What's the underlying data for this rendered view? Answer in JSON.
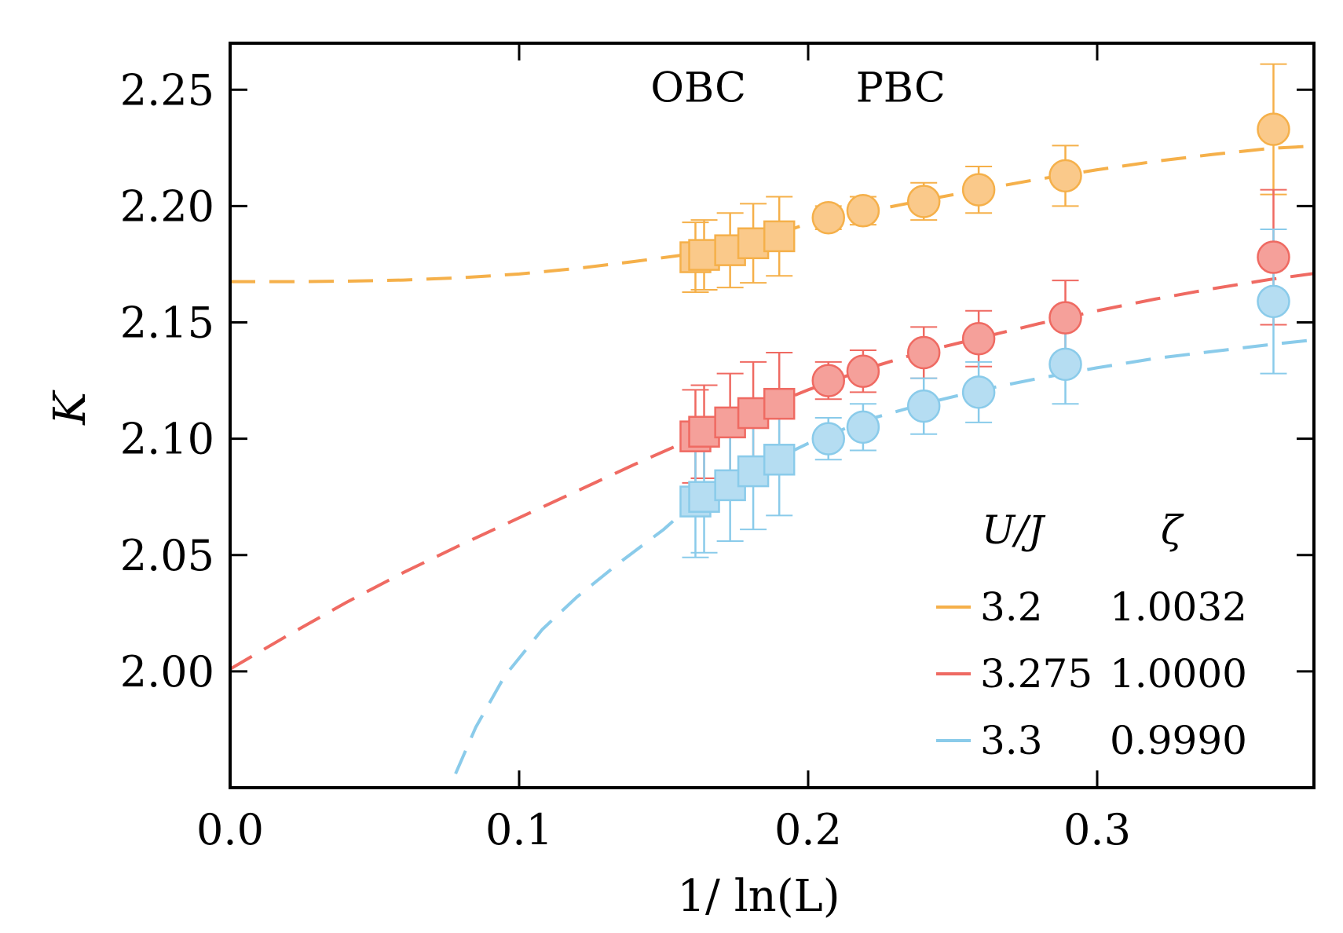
{
  "chart_data": {
    "type": "scatter",
    "title": "",
    "xlabel": "1/ ln(L)",
    "ylabel": "K",
    "xlim": [
      0.0,
      0.375
    ],
    "ylim": [
      1.95,
      2.27
    ],
    "xticks": [
      0.0,
      0.1,
      0.2,
      0.3
    ],
    "xtick_labels": [
      "0.0",
      "0.1",
      "0.2",
      "0.3"
    ],
    "yticks": [
      2.0,
      2.05,
      2.1,
      2.15,
      2.2,
      2.25
    ],
    "ytick_labels": [
      "2.00",
      "2.05",
      "2.10",
      "2.15",
      "2.20",
      "2.25"
    ],
    "grid": false,
    "annotations": [
      {
        "text": "OBC",
        "x": 0.162,
        "y": 2.251
      },
      {
        "text": "PBC",
        "x": 0.232,
        "y": 2.251
      }
    ],
    "legend": {
      "placement": "bottom-right",
      "header": {
        "col1": "U/J",
        "col2": "ζ"
      }
    },
    "series": [
      {
        "name": "3.2",
        "zeta": "1.0032",
        "color": "#F5B04A",
        "fill": "#FAC98A",
        "obc": {
          "x": [
            0.161,
            0.164,
            0.173,
            0.181,
            0.19
          ],
          "y": [
            2.178,
            2.179,
            2.181,
            2.184,
            2.187
          ],
          "err": [
            0.015,
            0.015,
            0.016,
            0.017,
            0.017
          ]
        },
        "pbc": {
          "x": [
            0.207,
            0.219,
            0.24,
            0.259,
            0.289,
            0.361
          ],
          "y": [
            2.195,
            2.198,
            2.202,
            2.207,
            2.213,
            2.233
          ],
          "err": [
            0.005,
            0.006,
            0.008,
            0.01,
            0.013,
            0.028
          ]
        },
        "fit": {
          "x": [
            0.0,
            0.02,
            0.04,
            0.06,
            0.08,
            0.1,
            0.12,
            0.14,
            0.16,
            0.18,
            0.2,
            0.22,
            0.24,
            0.26,
            0.28,
            0.3,
            0.32,
            0.34,
            0.36,
            0.375
          ],
          "y": [
            2.1675,
            2.1675,
            2.1677,
            2.1682,
            2.1692,
            2.1708,
            2.1732,
            2.1762,
            2.1795,
            2.1836,
            2.1926,
            2.1976,
            2.2025,
            2.2072,
            2.2116,
            2.2156,
            2.2192,
            2.2222,
            2.2248,
            2.2258
          ]
        }
      },
      {
        "name": "3.275",
        "zeta": "1.0000",
        "color": "#EF6A62",
        "fill": "#F5A09A",
        "obc": {
          "x": [
            0.161,
            0.164,
            0.173,
            0.181,
            0.19
          ],
          "y": [
            2.101,
            2.103,
            2.107,
            2.111,
            2.115
          ],
          "err": [
            0.02,
            0.02,
            0.021,
            0.022,
            0.022
          ]
        },
        "pbc": {
          "x": [
            0.207,
            0.219,
            0.24,
            0.259,
            0.289,
            0.361
          ],
          "y": [
            2.125,
            2.129,
            2.137,
            2.143,
            2.152,
            2.178
          ],
          "err": [
            0.008,
            0.009,
            0.011,
            0.012,
            0.016,
            0.029
          ]
        },
        "fit": {
          "x": [
            0.0,
            0.02,
            0.04,
            0.06,
            0.08,
            0.1,
            0.12,
            0.14,
            0.16,
            0.18,
            0.2,
            0.22,
            0.24,
            0.26,
            0.28,
            0.3,
            0.32,
            0.34,
            0.36,
            0.375
          ],
          "y": [
            2.001,
            2.0155,
            2.0295,
            2.0425,
            2.0545,
            2.066,
            2.0775,
            2.089,
            2.1,
            2.111,
            2.121,
            2.13,
            2.1375,
            2.1435,
            2.1495,
            2.155,
            2.16,
            2.1645,
            2.1685,
            2.171
          ]
        }
      },
      {
        "name": "3.3",
        "zeta": "0.9990",
        "color": "#8ACBEA",
        "fill": "#B5DDF2",
        "obc": {
          "x": [
            0.161,
            0.164,
            0.173,
            0.181,
            0.19
          ],
          "y": [
            2.073,
            2.075,
            2.08,
            2.086,
            2.091
          ],
          "err": [
            0.024,
            0.024,
            0.024,
            0.025,
            0.024
          ]
        },
        "pbc": {
          "x": [
            0.207,
            0.219,
            0.24,
            0.259,
            0.289,
            0.361
          ],
          "y": [
            2.1,
            2.105,
            2.114,
            2.12,
            2.132,
            2.159
          ],
          "err": [
            0.009,
            0.01,
            0.012,
            0.013,
            0.017,
            0.031
          ]
        },
        "fit": {
          "x": [
            0.078,
            0.085,
            0.095,
            0.108,
            0.12,
            0.135,
            0.15,
            0.16,
            0.18,
            0.2,
            0.22,
            0.24,
            0.26,
            0.28,
            0.3,
            0.32,
            0.34,
            0.36,
            0.375
          ],
          "y": [
            1.956,
            1.976,
            1.998,
            2.018,
            2.032,
            2.047,
            2.061,
            2.072,
            2.086,
            2.098,
            2.108,
            2.115,
            2.121,
            2.126,
            2.1305,
            2.1345,
            2.1375,
            2.1405,
            2.1425
          ]
        }
      }
    ]
  }
}
